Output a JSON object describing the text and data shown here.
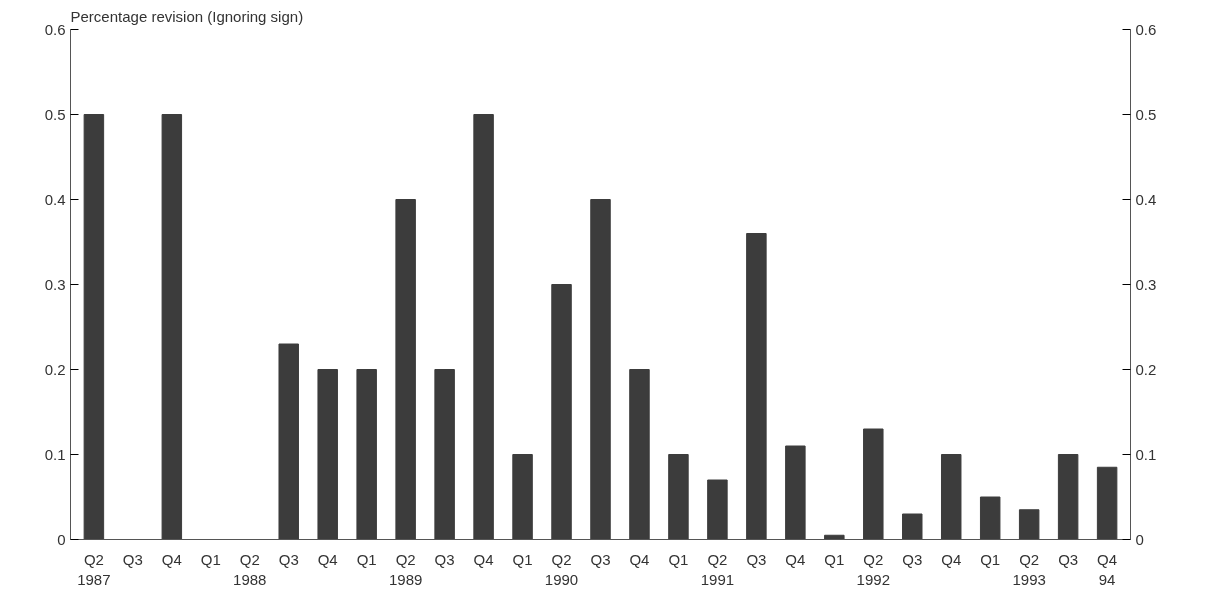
{
  "chart_data": {
    "type": "bar",
    "ylabel": "Percentage revision (Ignoring sign)",
    "categories": [
      "Q2\n1987",
      "Q3",
      "Q4",
      "Q1",
      "Q2\n1988",
      "Q3",
      "Q4",
      "Q1",
      "Q2\n1989",
      "Q3",
      "Q4",
      "Q1",
      "Q2\n1990",
      "Q3",
      "Q4",
      "Q1",
      "Q2\n1991",
      "Q3",
      "Q4",
      "Q1",
      "Q2\n1992",
      "Q3",
      "Q4",
      "Q1",
      "Q2\n1993",
      "Q3",
      "Q4\n94"
    ],
    "values": [
      0.5,
      0,
      0.5,
      0,
      0,
      0.23,
      0.2,
      0.2,
      0.4,
      0.2,
      0.5,
      0.1,
      0.3,
      0.4,
      0.2,
      0.1,
      0.07,
      0.36,
      0.11,
      0.005,
      0.13,
      0.03,
      0.1,
      0.05,
      0.035,
      0.1,
      0.085
    ],
    "color": "#3c3c3c",
    "ylim": [
      0,
      0.6
    ],
    "yticks": [
      0,
      0.1,
      0.2,
      0.3,
      0.4,
      0.5,
      0.6
    ],
    "y2lim": [
      0,
      0.6
    ],
    "y2ticks": [
      0,
      0.1,
      0.2,
      0.3,
      0.4,
      0.5,
      0.6
    ],
    "grid": false
  }
}
